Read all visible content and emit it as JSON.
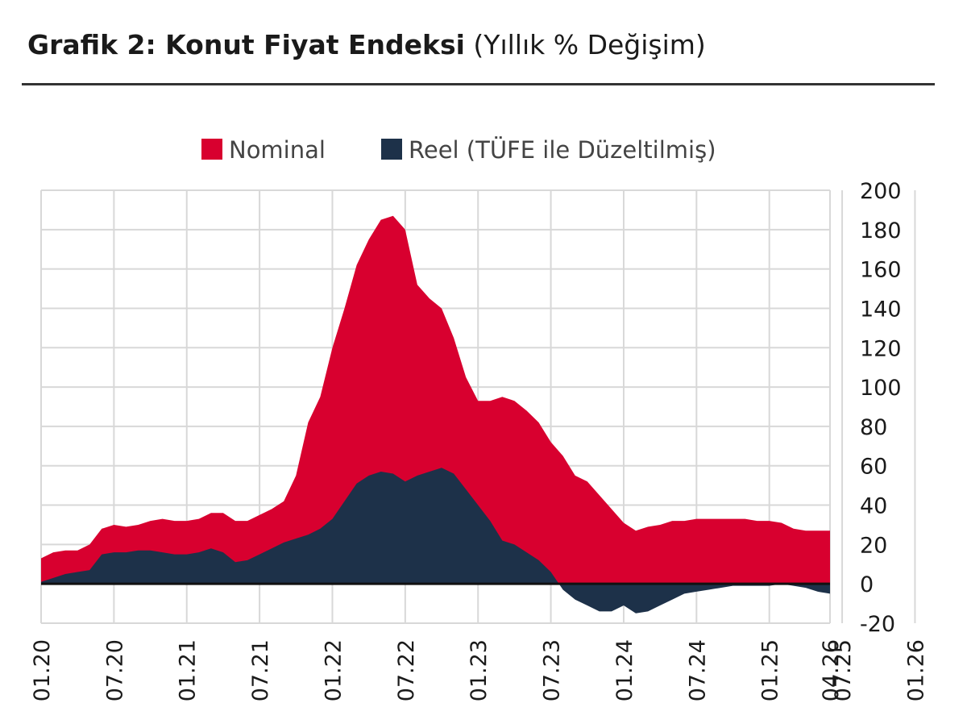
{
  "header": {
    "title": "Grafik 2: Konut Fiyat Endeksi",
    "subtitle": "(Yıllık % Değişim)"
  },
  "colors": {
    "nominal": "#D8002F",
    "reel": "#1D3149",
    "grid": "#D8D8D8",
    "axis": "#111111"
  },
  "chart_data": {
    "type": "area",
    "x_tick_labels": [
      "01.20",
      "07.20",
      "01.21",
      "07.21",
      "01.22",
      "07.22",
      "01.23",
      "07.23",
      "01.24",
      "07.24",
      "01.25",
      "07.25",
      "01.26",
      "04.26"
    ],
    "y_ticks": [
      200,
      180,
      160,
      140,
      120,
      100,
      80,
      60,
      40,
      20,
      0,
      -20
    ],
    "ylim": [
      -20,
      200
    ],
    "grid": true,
    "legend_position": "top",
    "series": [
      {
        "name": "Nominal",
        "values": [
          13,
          16,
          17,
          17,
          20,
          28,
          30,
          29,
          30,
          32,
          33,
          32,
          32,
          33,
          36,
          36,
          32,
          32,
          35,
          38,
          42,
          55,
          82,
          95,
          120,
          140,
          162,
          175,
          185,
          187,
          180,
          152,
          145,
          140,
          125,
          105,
          93,
          93,
          95,
          93,
          88,
          82,
          72,
          65,
          55,
          52,
          45,
          38,
          31,
          27,
          29,
          30,
          32,
          32,
          33,
          33,
          33,
          33,
          33,
          32,
          32,
          31,
          28,
          27,
          27,
          27
        ]
      },
      {
        "name": "Reel (TÜFE ile Düzeltilmiş)",
        "values": [
          1,
          3,
          5,
          6,
          7,
          15,
          16,
          16,
          17,
          17,
          16,
          15,
          15,
          16,
          18,
          16,
          11,
          12,
          15,
          18,
          21,
          23,
          25,
          28,
          33,
          42,
          51,
          55,
          57,
          56,
          52,
          55,
          57,
          59,
          56,
          48,
          40,
          32,
          22,
          20,
          16,
          12,
          6,
          -3,
          -8,
          -11,
          -14,
          -14,
          -11,
          -15,
          -14,
          -11,
          -8,
          -5,
          -4,
          -3,
          -2,
          -1,
          -1,
          -1,
          -1,
          0,
          -1,
          -2,
          -4,
          -5
        ]
      }
    ]
  }
}
